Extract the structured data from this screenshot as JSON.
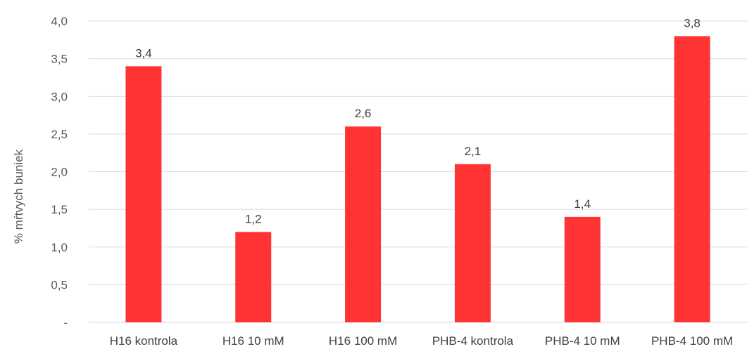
{
  "chart_data": {
    "type": "bar",
    "categories": [
      "H16 kontrola",
      "H16 10 mM",
      "H16 100 mM",
      "PHB-4 kontrola",
      "PHB-4 10 mM",
      "PHB-4 100 mM"
    ],
    "values": [
      3.4,
      1.2,
      2.6,
      2.1,
      1.4,
      3.8
    ],
    "data_labels": [
      "3,4",
      "1,2",
      "2,6",
      "2,1",
      "1,4",
      "3,8"
    ],
    "ylabel": "% mŕtvych buniek",
    "xlabel": "",
    "title": "",
    "ylim": [
      0,
      4
    ],
    "yticks": [
      0,
      0.5,
      1,
      1.5,
      2,
      2.5,
      3,
      3.5,
      4
    ],
    "ytick_labels": [
      "-",
      "0,5",
      "1,0",
      "1,5",
      "2,0",
      "2,5",
      "3,0",
      "3,5",
      "4,0"
    ],
    "grid": true,
    "legend": "none",
    "colors": {
      "bar": "#FF3334",
      "grid": "#D9D9D9",
      "axis": "#D9D9D9"
    }
  }
}
